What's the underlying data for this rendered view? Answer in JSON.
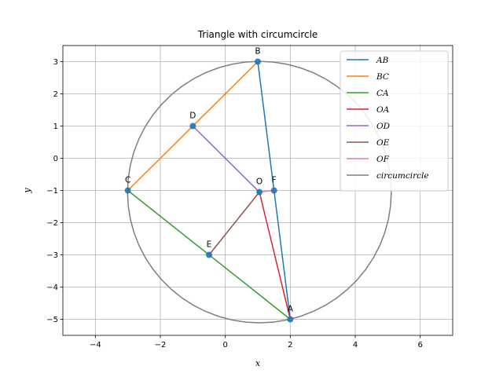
{
  "chart_data": {
    "type": "line",
    "title": "Triangle with circumcircle",
    "xlabel": "x",
    "ylabel": "y",
    "xlim": [
      -5,
      7
    ],
    "ylim": [
      -5.5,
      3.5
    ],
    "xticks": [
      -4,
      -2,
      0,
      2,
      4,
      6
    ],
    "xtick_labels": [
      "−4",
      "−2",
      "0",
      "2",
      "4",
      "6"
    ],
    "yticks": [
      -5,
      -4,
      -3,
      -2,
      -1,
      0,
      1,
      2,
      3
    ],
    "ytick_labels": [
      "−5",
      "−4",
      "−3",
      "−2",
      "−1",
      "0",
      "1",
      "2",
      "3"
    ],
    "grid": true,
    "legend_position": "top-right",
    "points": [
      {
        "label": "A",
        "x": 2,
        "y": -5
      },
      {
        "label": "B",
        "x": 1,
        "y": 3
      },
      {
        "label": "C",
        "x": -3,
        "y": -1
      },
      {
        "label": "D",
        "x": -1,
        "y": 1
      },
      {
        "label": "E",
        "x": -0.5,
        "y": -3
      },
      {
        "label": "F",
        "x": 1.5,
        "y": -1
      },
      {
        "label": "O",
        "x": 1.05,
        "y": -1.05
      }
    ],
    "point_color": "#1f77b4",
    "series": [
      {
        "name": "AB",
        "color": "#1f77b4",
        "x": [
          2,
          1
        ],
        "y": [
          -5,
          3
        ]
      },
      {
        "name": "BC",
        "color": "#ff7f0e",
        "x": [
          1,
          -3
        ],
        "y": [
          3,
          -1
        ]
      },
      {
        "name": "CA",
        "color": "#2ca02c",
        "x": [
          -3,
          2
        ],
        "y": [
          -1,
          -5
        ]
      },
      {
        "name": "OA",
        "color": "#d62728",
        "x": [
          1.05,
          2
        ],
        "y": [
          -1.05,
          -5
        ]
      },
      {
        "name": "OD",
        "color": "#9467bd",
        "x": [
          1.05,
          -1
        ],
        "y": [
          -1.05,
          1
        ]
      },
      {
        "name": "OE",
        "color": "#8c564b",
        "x": [
          1.05,
          -0.5
        ],
        "y": [
          -1.05,
          -3
        ]
      },
      {
        "name": "OF",
        "color": "#e377c2",
        "x": [
          1.05,
          1.5
        ],
        "y": [
          -1.05,
          -1
        ]
      },
      {
        "name": "circumcircle",
        "color": "#7f7f7f",
        "type": "circle",
        "center": [
          1.05,
          -1.05
        ],
        "radius": 4.06
      }
    ]
  }
}
